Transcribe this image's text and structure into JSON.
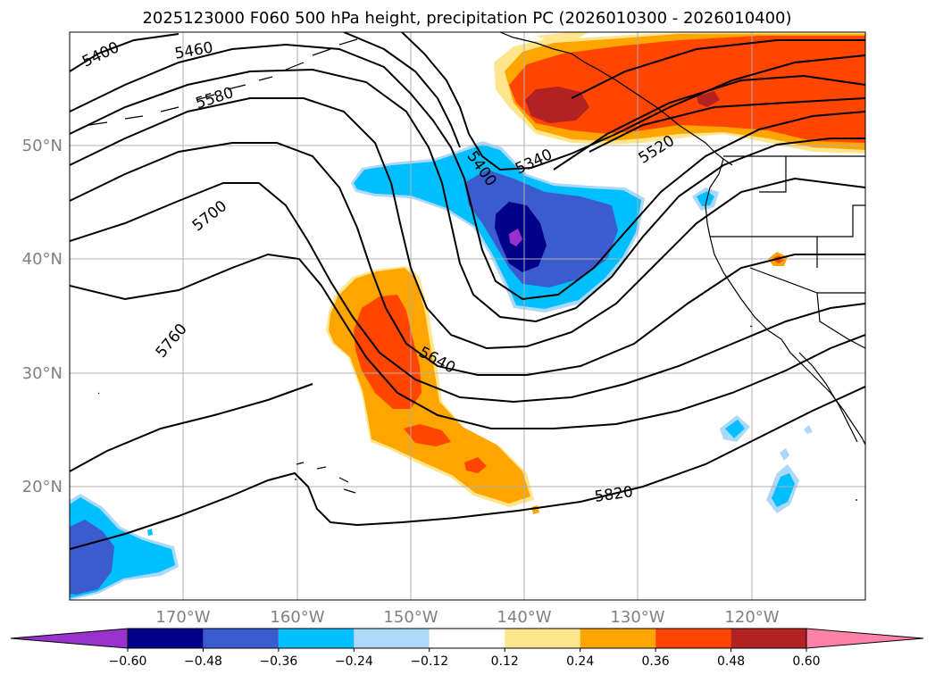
{
  "title": "2025123000 F060 500 hPa height, precipitation PC (2026010300 - 2026010400)",
  "latitude_labels": [
    "50°N",
    "40°N",
    "30°N",
    "20°N"
  ],
  "longitude_labels": [
    "170°W",
    "160°W",
    "150°W",
    "140°W",
    "130°W",
    "120°W"
  ],
  "contour_labels": [
    "5400",
    "5460",
    "5580",
    "5700",
    "5760",
    "5400",
    "5340",
    "5520",
    "5640",
    "5820"
  ],
  "colorbar": {
    "tick_labels": [
      "−0.60",
      "−0.48",
      "−0.36",
      "−0.24",
      "−0.12",
      "0.12",
      "0.24",
      "0.36",
      "0.48",
      "0.60"
    ],
    "colors": [
      "#9932cc",
      "#00008b",
      "#3a5cce",
      "#00bfff",
      "#add8f7",
      "#ffffff",
      "#ffe68c",
      "#ffa500",
      "#ff4500",
      "#b22222",
      "#ff82a8"
    ]
  },
  "colors": {
    "contour": "#000000",
    "coastline": "#000000",
    "grid": "#b0b0b0",
    "axis_text": "#808080"
  }
}
